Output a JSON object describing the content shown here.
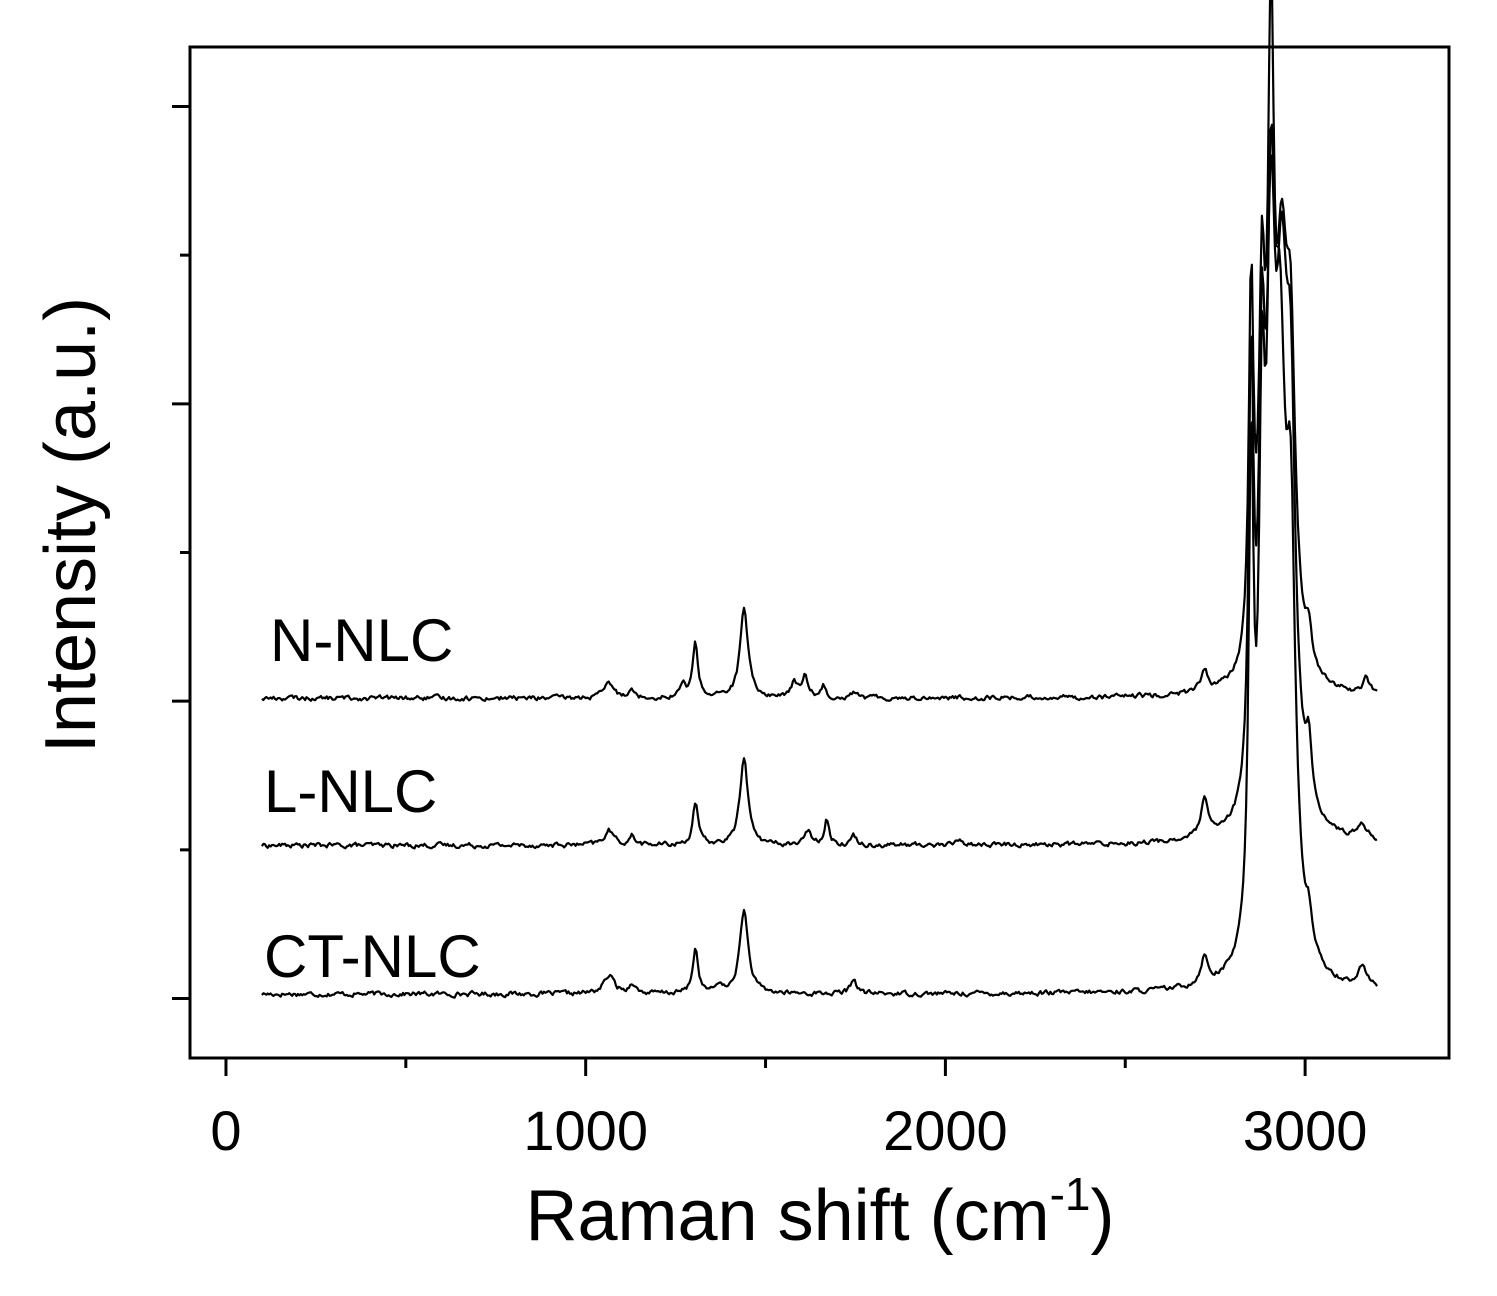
{
  "chart_data": {
    "type": "line",
    "xlabel": "Raman shift (cm",
    "xlabel_superscript": "-1",
    "xlabel_suffix": ")",
    "ylabel": "Intensity (a.u.)",
    "xlim": [
      -100,
      3400
    ],
    "ylim": [
      -0.2,
      3.2
    ],
    "x_ticks": [
      0,
      1000,
      2000,
      3000
    ],
    "x_tick_labels": [
      "0",
      "1000",
      "2000",
      "3000"
    ],
    "x_minor_ticks": [
      500,
      1500,
      2500
    ],
    "y_ticks": [
      0,
      1,
      2,
      3
    ],
    "y_minor_ticks": [
      0.5,
      1.5,
      2.5
    ],
    "y_tick_labels_shown": false,
    "grid": false,
    "line_color": "#000000",
    "series": [
      {
        "name": "CT-NLC",
        "offset": 0,
        "base": 0.015,
        "peaks": [
          [
            1065,
            0.06,
            18
          ],
          [
            1130,
            0.035,
            10
          ],
          [
            1305,
            0.15,
            9
          ],
          [
            1370,
            0.03,
            8
          ],
          [
            1440,
            0.28,
            14
          ],
          [
            1745,
            0.05,
            10
          ],
          [
            2720,
            0.09,
            12
          ],
          [
            2850,
            1.6,
            8
          ],
          [
            2880,
            1.45,
            10
          ],
          [
            2905,
            1.95,
            14
          ],
          [
            2930,
            1.7,
            20
          ],
          [
            2960,
            1.2,
            15
          ],
          [
            3010,
            0.1,
            10
          ],
          [
            3160,
            0.07,
            15
          ]
        ]
      },
      {
        "name": "L-NLC",
        "offset": 0.5,
        "base": 0.015,
        "peaks": [
          [
            1065,
            0.05,
            15
          ],
          [
            1130,
            0.03,
            10
          ],
          [
            1305,
            0.14,
            9
          ],
          [
            1440,
            0.3,
            13
          ],
          [
            1620,
            0.05,
            10
          ],
          [
            1670,
            0.09,
            8
          ],
          [
            1745,
            0.03,
            10
          ],
          [
            2040,
            0.02,
            10
          ],
          [
            2720,
            0.12,
            12
          ],
          [
            2850,
            1.45,
            8
          ],
          [
            2880,
            1.25,
            10
          ],
          [
            2905,
            1.6,
            14
          ],
          [
            2935,
            1.5,
            20
          ],
          [
            2960,
            1.1,
            15
          ],
          [
            3010,
            0.2,
            10
          ],
          [
            3160,
            0.05,
            15
          ]
        ]
      },
      {
        "name": "N-NLC",
        "offset": 1.0,
        "base": 0.01,
        "peaks": [
          [
            1065,
            0.05,
            15
          ],
          [
            1125,
            0.03,
            10
          ],
          [
            1270,
            0.04,
            10
          ],
          [
            1305,
            0.18,
            9
          ],
          [
            1440,
            0.3,
            13
          ],
          [
            1580,
            0.05,
            10
          ],
          [
            1610,
            0.07,
            10
          ],
          [
            1660,
            0.04,
            8
          ],
          [
            1745,
            0.02,
            10
          ],
          [
            2720,
            0.07,
            12
          ],
          [
            2850,
            1.25,
            8
          ],
          [
            2880,
            1.1,
            10
          ],
          [
            2905,
            1.9,
            10
          ],
          [
            2935,
            1.2,
            20
          ],
          [
            2960,
            0.9,
            15
          ],
          [
            3010,
            0.12,
            10
          ],
          [
            3170,
            0.05,
            12
          ]
        ]
      }
    ]
  }
}
